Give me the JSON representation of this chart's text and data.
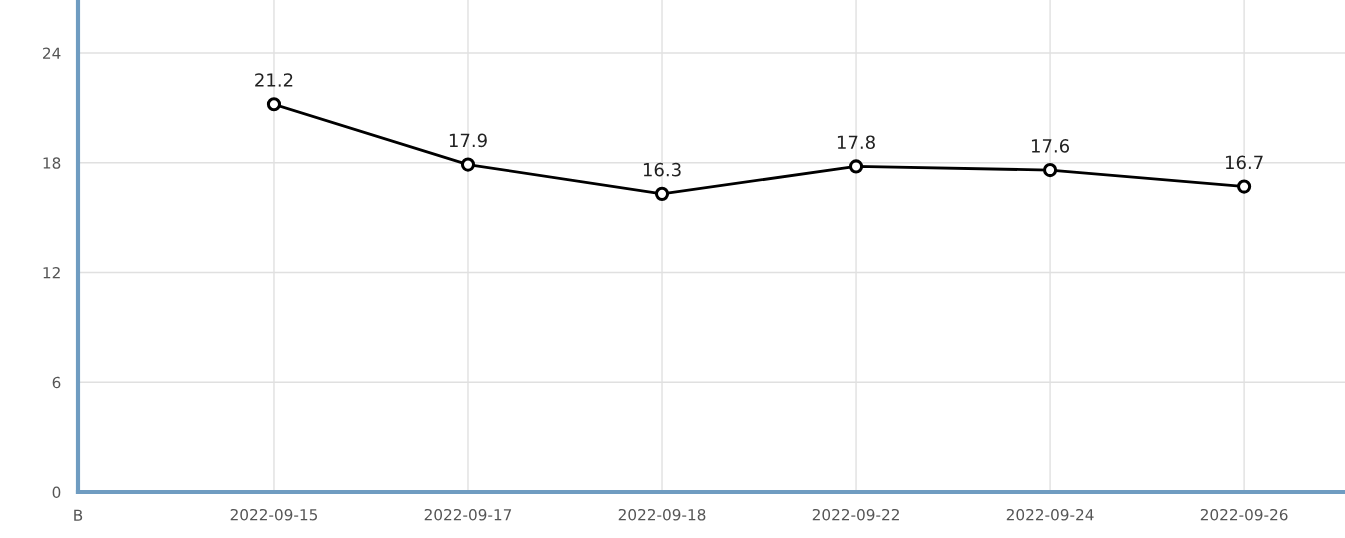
{
  "chart_data": {
    "type": "line",
    "categories": [
      "2022-09-15",
      "2022-09-17",
      "2022-09-18",
      "2022-09-22",
      "2022-09-24",
      "2022-09-26"
    ],
    "series": [
      {
        "color": "#000000",
        "values": [
          21.2,
          17.9,
          16.3,
          17.8,
          17.6,
          16.7
        ],
        "value_labels": [
          "21.2",
          "17.9",
          "16.3",
          "17.8",
          "17.6",
          "16.7"
        ]
      }
    ],
    "ylim": [
      0,
      26.9
    ],
    "yticks": [
      0,
      6,
      12,
      18,
      24
    ],
    "grid": true,
    "marker": "circle",
    "line_style": "solid",
    "annotations": [
      "B"
    ]
  }
}
